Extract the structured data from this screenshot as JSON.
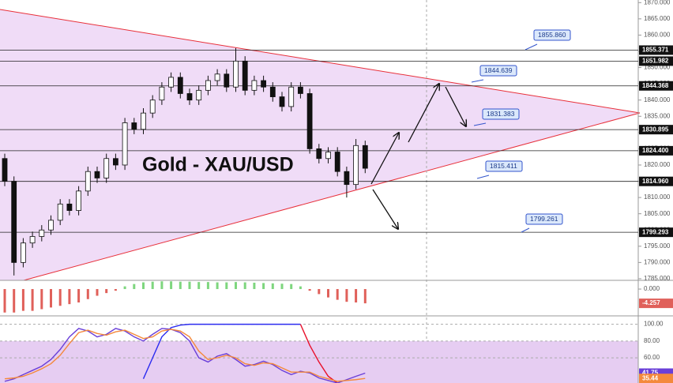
{
  "chart_data": [
    {
      "type": "candlestick",
      "title": "Gold - XAU/USD",
      "ylim": [
        1784.5,
        1870.8
      ],
      "yticks": [
        {
          "value": 1785,
          "label": "1785.000"
        },
        {
          "value": 1790,
          "label": "1790.000"
        },
        {
          "value": 1795,
          "label": "1795.000"
        },
        {
          "value": 1800,
          "label": "1800.000"
        },
        {
          "value": 1805,
          "label": "1805.000"
        },
        {
          "value": 1810,
          "label": "1810.000"
        },
        {
          "value": 1815,
          "label": "1815.000"
        },
        {
          "value": 1820,
          "label": "1820.000"
        },
        {
          "value": 1825,
          "label": "1825.000"
        },
        {
          "value": 1830,
          "label": "1830.000"
        },
        {
          "value": 1835,
          "label": "1835.000"
        },
        {
          "value": 1840,
          "label": "1840.000"
        },
        {
          "value": 1845,
          "label": "1845.000"
        },
        {
          "value": 1850,
          "label": "1850.000"
        },
        {
          "value": 1855,
          "label": "1855.000"
        },
        {
          "value": 1860,
          "label": "1860.000"
        },
        {
          "value": 1865,
          "label": "1865.000"
        },
        {
          "value": 1870,
          "label": "1870.000"
        }
      ],
      "open": [
        1822,
        1815,
        1790,
        1796,
        1798,
        1800,
        1803,
        1808,
        1806,
        1812,
        1818,
        1816,
        1822,
        1820,
        1833,
        1831,
        1836,
        1840,
        1844,
        1847,
        1842,
        1840,
        1843,
        1846,
        1848,
        1844,
        1852,
        1843,
        1846,
        1844,
        1841,
        1838,
        1844,
        1842,
        1825,
        1822,
        1824,
        1818,
        1814,
        1826
      ],
      "high": [
        1823.5,
        1816.5,
        1797.5,
        1799.5,
        1801.5,
        1804.5,
        1809.5,
        1809.5,
        1813.5,
        1819.5,
        1819.5,
        1823.5,
        1823.5,
        1834.5,
        1834.5,
        1837.5,
        1841.5,
        1845.5,
        1848.5,
        1848.5,
        1843.5,
        1844.5,
        1847.5,
        1849.5,
        1849.5,
        1856,
        1853.5,
        1847.5,
        1847.5,
        1845.5,
        1842.5,
        1845.5,
        1845.5,
        1843.5,
        1826.5,
        1825.5,
        1825.5,
        1819.5,
        1828,
        1827.5
      ],
      "low": [
        1813.5,
        1786,
        1788.5,
        1794.5,
        1796.5,
        1798.5,
        1801.5,
        1804.5,
        1804.5,
        1810.5,
        1814.5,
        1814.5,
        1818.5,
        1818.5,
        1829.5,
        1829.5,
        1834.5,
        1838.5,
        1842.5,
        1840.5,
        1838.5,
        1838.5,
        1841.5,
        1844.5,
        1842.5,
        1842.5,
        1841.5,
        1841.5,
        1842.5,
        1839.5,
        1836.5,
        1836.5,
        1840.5,
        1823.5,
        1820.5,
        1820.5,
        1816.5,
        1810,
        1812.5,
        1817.5
      ],
      "close": [
        1815,
        1790,
        1796,
        1798,
        1800,
        1803,
        1808,
        1806,
        1812,
        1818,
        1816,
        1822,
        1820,
        1833,
        1831,
        1836,
        1840,
        1844,
        1847,
        1842,
        1840,
        1843,
        1846,
        1848,
        1844,
        1852,
        1843,
        1846,
        1844,
        1841,
        1838,
        1844,
        1842,
        1825,
        1822,
        1824,
        1818,
        1814,
        1826,
        1819
      ],
      "levels": [
        1855.371,
        1851.982,
        1844.368,
        1830.895,
        {
          "value": 1824.4,
          "label": "1824.400"
        },
        {
          "value": 1814.96,
          "label": "1814.960"
        },
        1799.293
      ],
      "annotations": [
        {
          "value": 1855.86,
          "label": "1855.860"
        },
        1844.639,
        1831.383,
        1815.411,
        1799.261
      ]
    },
    {
      "type": "bar",
      "ylim": [
        -8,
        2.6
      ],
      "yticks": [
        {
          "value": 0,
          "label": "0.000"
        }
      ],
      "values": [
        -7,
        -7,
        -6.5,
        -6.5,
        -6,
        -5.5,
        -5,
        -4.5,
        -4,
        -3,
        -2,
        -1.2,
        -0.5,
        0.8,
        1.5,
        2,
        2.2,
        2.3,
        2.3,
        2.2,
        2.2,
        2.1,
        2.1,
        2,
        2,
        2.1,
        2,
        1.9,
        1.8,
        1.7,
        1.6,
        1.5,
        0.8,
        -0.5,
        -1.5,
        -2.5,
        -3.2,
        -3.8,
        -4,
        -4.257
      ],
      "colors": {
        "up": "#7ed67e",
        "down": "#e0605a"
      }
    },
    {
      "type": "line",
      "ylim": [
        30,
        110
      ],
      "yticks": [
        {
          "value": 100,
          "label": "100.00"
        },
        {
          "value": 80,
          "label": "80.00"
        },
        {
          "value": 60,
          "label": "60.00"
        }
      ],
      "series": [
        {
          "color": "#2b2bf0",
          "values": [
            null,
            null,
            null,
            null,
            null,
            null,
            null,
            null,
            null,
            null,
            null,
            null,
            null,
            null,
            null,
            35,
            60,
            85,
            96,
            99,
            100,
            100,
            100,
            100,
            100,
            100,
            100,
            100,
            100,
            100,
            100,
            100,
            100,
            null,
            null,
            null,
            null,
            null,
            null,
            null
          ]
        },
        {
          "color": "#e8102a",
          "values": [
            null,
            null,
            null,
            null,
            null,
            null,
            null,
            null,
            null,
            null,
            null,
            null,
            null,
            null,
            null,
            null,
            null,
            null,
            null,
            null,
            null,
            null,
            null,
            null,
            null,
            null,
            null,
            null,
            null,
            null,
            null,
            null,
            100,
            75,
            55,
            38,
            30,
            null,
            null,
            null
          ]
        },
        {
          "color": "#6a3fd8",
          "values": [
            32,
            35,
            40,
            45,
            50,
            58,
            70,
            85,
            95,
            92,
            85,
            88,
            95,
            92,
            85,
            80,
            88,
            95,
            94,
            90,
            80,
            60,
            55,
            62,
            65,
            58,
            50,
            52,
            56,
            52,
            45,
            40,
            44,
            42,
            36,
            33,
            30,
            34,
            38,
            41.75
          ]
        },
        {
          "color": "#f4893c",
          "values": [
            35,
            36,
            38,
            42,
            47,
            53,
            63,
            77,
            90,
            93,
            89,
            87,
            91,
            93,
            88,
            83,
            85,
            92,
            94,
            92,
            85,
            68,
            58,
            60,
            63,
            60,
            53,
            51,
            54,
            53,
            48,
            43,
            43,
            43,
            38,
            35,
            32,
            33,
            34,
            35.44
          ]
        }
      ]
    }
  ]
}
